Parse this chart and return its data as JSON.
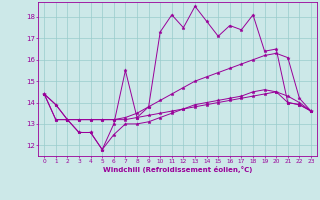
{
  "xlabel": "Windchill (Refroidissement éolien,°C)",
  "bg_color": "#cce8e8",
  "line_color": "#990099",
  "grid_color": "#99cccc",
  "xlim": [
    -0.5,
    23.5
  ],
  "ylim": [
    11.5,
    18.7
  ],
  "xticks": [
    0,
    1,
    2,
    3,
    4,
    5,
    6,
    7,
    8,
    9,
    10,
    11,
    12,
    13,
    14,
    15,
    16,
    17,
    18,
    19,
    20,
    21,
    22,
    23
  ],
  "yticks": [
    12,
    13,
    14,
    15,
    16,
    17,
    18
  ],
  "line1_x": [
    0,
    1,
    2,
    3,
    4,
    5,
    6,
    7,
    8,
    9,
    10,
    11,
    12,
    13,
    14,
    15,
    16,
    17,
    18,
    19,
    20,
    21,
    22,
    23
  ],
  "line1_y": [
    14.4,
    13.9,
    13.2,
    12.6,
    12.6,
    11.8,
    13.0,
    15.5,
    13.3,
    13.8,
    17.3,
    18.1,
    17.5,
    18.5,
    17.8,
    17.1,
    17.6,
    17.4,
    18.1,
    16.4,
    16.5,
    14.0,
    13.9,
    13.6
  ],
  "line2_x": [
    0,
    1,
    2,
    3,
    4,
    5,
    6,
    7,
    8,
    9,
    10,
    11,
    12,
    13,
    14,
    15,
    16,
    17,
    18,
    19,
    20,
    21,
    22,
    23
  ],
  "line2_y": [
    14.4,
    13.2,
    13.2,
    13.2,
    13.2,
    13.2,
    13.2,
    13.3,
    13.5,
    13.8,
    14.1,
    14.4,
    14.7,
    15.0,
    15.2,
    15.4,
    15.6,
    15.8,
    16.0,
    16.2,
    16.3,
    16.1,
    14.2,
    13.6
  ],
  "line3_x": [
    0,
    1,
    2,
    3,
    4,
    5,
    6,
    7,
    8,
    9,
    10,
    11,
    12,
    13,
    14,
    15,
    16,
    17,
    18,
    19,
    20,
    21,
    22,
    23
  ],
  "line3_y": [
    14.4,
    13.2,
    13.2,
    13.2,
    13.2,
    13.2,
    13.2,
    13.2,
    13.3,
    13.4,
    13.5,
    13.6,
    13.7,
    13.8,
    13.9,
    14.0,
    14.1,
    14.2,
    14.3,
    14.4,
    14.5,
    14.3,
    14.0,
    13.6
  ],
  "line4_x": [
    0,
    1,
    2,
    3,
    4,
    5,
    6,
    7,
    8,
    9,
    10,
    11,
    12,
    13,
    14,
    15,
    16,
    17,
    18,
    19,
    20,
    21,
    22,
    23
  ],
  "line4_y": [
    14.4,
    13.9,
    13.2,
    12.6,
    12.6,
    11.8,
    12.5,
    13.0,
    13.0,
    13.1,
    13.3,
    13.5,
    13.7,
    13.9,
    14.0,
    14.1,
    14.2,
    14.3,
    14.5,
    14.6,
    14.5,
    14.0,
    13.9,
    13.6
  ]
}
